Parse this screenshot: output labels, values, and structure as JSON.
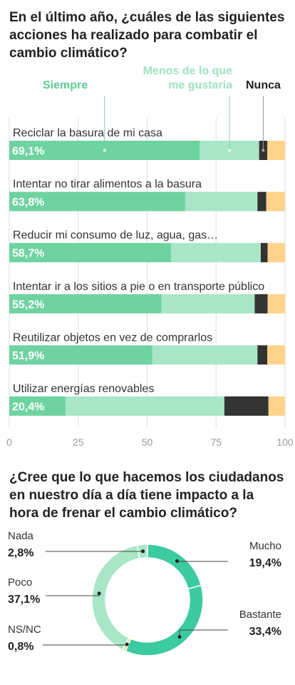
{
  "chart1": {
    "title": "En el último año, ¿cuáles de las siguientes acciones ha realizado para combatir el cambio climático?",
    "colors": {
      "siempre": "#6ed3a0",
      "menos": "#a8e6c6",
      "nunca": "#333333",
      "nsnc": "#ffd38a",
      "grid": "#dddddd",
      "tick": "#999999",
      "legend_siempre": "#5bcc94",
      "legend_menos": "#9ee3c0",
      "legend_nunca": "#222222"
    },
    "legend": [
      "Siempre",
      "Menos de lo que\nme gustaría",
      "Nunca"
    ]
  },
  "chart2": {
    "title": "¿Cree que lo que hacemos los ciudadanos en nuestro día a día tiene impacto a la hora de frenar el cambio climático?",
    "colors": {
      "Mucho": "#3ccaa0",
      "Bastante": "#3ccaa0",
      "NS/NC": "#ffd38a",
      "Poco": "#a8e6c6",
      "Nada": "#a8e6c6"
    }
  },
  "chart_data": [
    {
      "type": "bar",
      "orientation": "horizontal",
      "stacked": true,
      "title": "En el último año, ¿cuáles de las siguientes acciones ha realizado para combatir el cambio climático?",
      "categories": [
        "Reciclar la basura de mi casa",
        "Intentar no tirar alimentos a la basura",
        "Reducir mi consumo de luz, agua, gas…",
        "Intentar ir a los sitios a pie o en transporte público",
        "Reutilizar objetos en vez de comprarlos",
        "Utilizar energías renovables"
      ],
      "series": [
        {
          "name": "Siempre",
          "values": [
            69.1,
            63.8,
            58.7,
            55.2,
            51.9,
            20.4
          ],
          "labels": [
            "69,1%",
            "63,8%",
            "58,7%",
            "55,2%",
            "51,9%",
            "20,4%"
          ]
        },
        {
          "name": "Menos de lo que me gustaría",
          "values": [
            21.5,
            26.2,
            32.5,
            33.8,
            38.1,
            57.6
          ]
        },
        {
          "name": "Nunca",
          "values": [
            3.0,
            3.2,
            2.5,
            4.7,
            3.6,
            16.0
          ]
        },
        {
          "values": [
            6.4,
            6.8,
            6.3,
            6.3,
            6.4,
            6.0
          ]
        }
      ],
      "xlim": [
        0,
        100
      ],
      "xticks": [
        "0",
        "25",
        "50",
        "75",
        "100"
      ],
      "grid": true,
      "legend": "top"
    },
    {
      "type": "pie",
      "donut": true,
      "title": "¿Cree que lo que hacemos los ciudadanos en nuestro día a día tiene impacto a la hora de frenar el cambio climático?",
      "slices": [
        {
          "label": "Mucho",
          "value": 19.4,
          "text": "19,4%"
        },
        {
          "label": "Bastante",
          "value": 33.4,
          "text": "33,4%"
        },
        {
          "label": "NS/NC",
          "value": 0.8,
          "text": "0,8%"
        },
        {
          "label": "Poco",
          "value": 37.1,
          "text": "37,1%"
        },
        {
          "label": "Nada",
          "value": 2.8,
          "text": "2,8%"
        }
      ]
    }
  ]
}
